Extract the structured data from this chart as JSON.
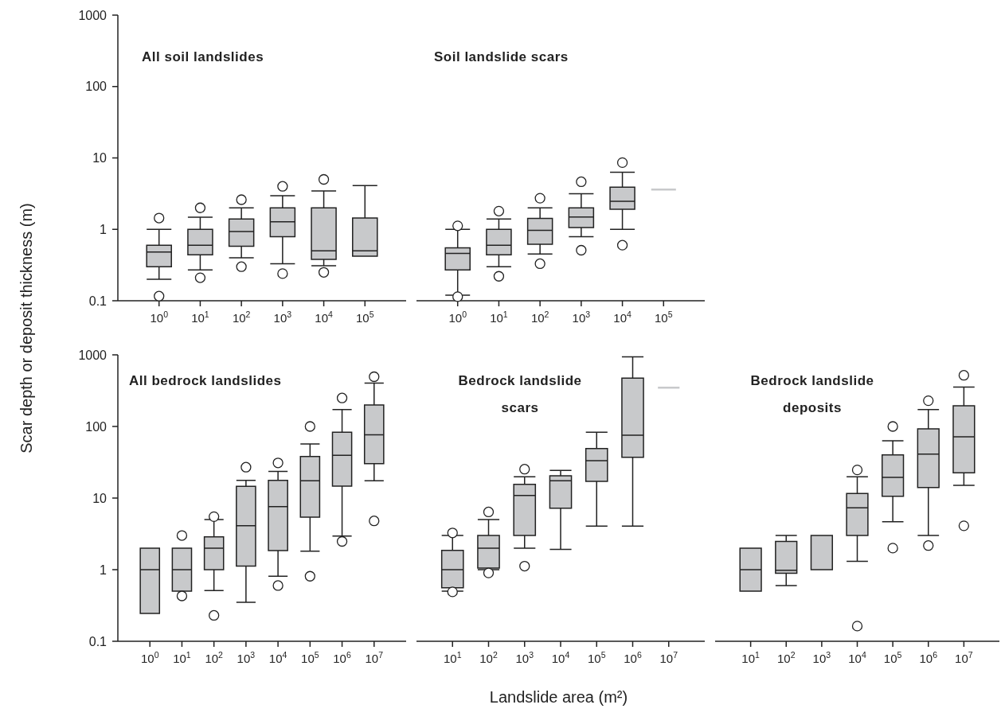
{
  "chart_data": [
    {
      "type": "box",
      "title": "All soil landslides",
      "ylabel": "Scar depth or deposit thickness (m)",
      "log": true,
      "ylim": [
        0.1,
        1000
      ],
      "yticks": [
        0.1,
        1,
        10,
        100,
        1000
      ],
      "color": "#c8c9cb",
      "categories": [
        "10$^{0}$",
        "10$^{1}$",
        "10$^{2}$",
        "10$^{3}$",
        "10$^{4}$",
        "10$^{5}$"
      ],
      "boxes": [
        {
          "low": 0.2,
          "q1": 0.3,
          "median": 0.48,
          "q3": 0.6,
          "high": 1.0,
          "outliers": [
            1.44,
            0.116
          ]
        },
        {
          "low": 0.27,
          "q1": 0.44,
          "median": 0.6,
          "q3": 1.0,
          "high": 1.48,
          "outliers": [
            2.0,
            0.21
          ]
        },
        {
          "low": 0.4,
          "q1": 0.58,
          "median": 0.93,
          "q3": 1.4,
          "high": 2.0,
          "outliers": [
            2.6,
            0.3
          ]
        },
        {
          "low": 0.33,
          "q1": 0.79,
          "median": 1.28,
          "q3": 2.0,
          "high": 2.95,
          "outliers": [
            4.0,
            0.24
          ]
        },
        {
          "low": 0.31,
          "q1": 0.38,
          "median": 0.5,
          "q3": 2.0,
          "high": 3.45,
          "outliers": [
            5.0,
            0.25
          ]
        },
        {
          "low": 0.42,
          "q1": 0.42,
          "median": 0.5,
          "q3": 1.44,
          "high": 4.1
        }
      ]
    },
    {
      "type": "box",
      "title": "Soil landslide scars",
      "log": true,
      "ylim": [
        0.1,
        1000
      ],
      "tick_labels": "x",
      "color": "#c8c9cb",
      "categories": [
        "10$^{0}$",
        "10$^{1}$",
        "10$^{2}$",
        "10$^{3}$",
        "10$^{4}$",
        "10$^{5}$"
      ],
      "boxes": [
        {
          "low": 0.12,
          "q1": 0.27,
          "median": 0.46,
          "q3": 0.55,
          "high": 1.0,
          "outliers": [
            1.12,
            0.114
          ]
        },
        {
          "low": 0.3,
          "q1": 0.44,
          "median": 0.6,
          "q3": 1.0,
          "high": 1.4,
          "outliers": [
            1.8,
            0.22
          ]
        },
        {
          "low": 0.45,
          "q1": 0.62,
          "median": 0.97,
          "q3": 1.42,
          "high": 2.0,
          "outliers": [
            2.73,
            0.33
          ]
        },
        {
          "low": 0.79,
          "q1": 1.06,
          "median": 1.49,
          "q3": 2.0,
          "high": 3.16,
          "outliers": [
            4.64,
            0.51
          ]
        },
        {
          "low": 1.0,
          "q1": 1.91,
          "median": 2.47,
          "q3": 3.9,
          "high": 6.3,
          "outliers": [
            8.6,
            0.6
          ]
        },
        {
          "low": 3.6,
          "q1": 3.6,
          "median": 3.6,
          "q3": 3.6,
          "high": 3.6
        }
      ]
    },
    {
      "type": "box",
      "title": "All bedrock landslides",
      "log": true,
      "ylim": [
        0.1,
        1000
      ],
      "yticks": [
        0.1,
        1,
        10,
        100,
        1000
      ],
      "color": "#c8c9cb",
      "categories": [
        "10$^{0}$",
        "10$^{1}$",
        "10$^{2}$",
        "10$^{3}$",
        "10$^{4}$",
        "10$^{5}$",
        "10$^{6}$",
        "10$^{7}$"
      ],
      "boxes": [
        {
          "low": 0.245,
          "q1": 0.245,
          "median": 1.0,
          "q3": 2.0,
          "high": 2.0
        },
        {
          "low": 0.5,
          "q1": 0.5,
          "median": 1.0,
          "q3": 2.0,
          "high": 2.0,
          "outliers": [
            3.0,
            0.43
          ]
        },
        {
          "low": 0.51,
          "q1": 1.0,
          "median": 2.0,
          "q3": 2.87,
          "high": 5.0,
          "outliers": [
            5.5,
            0.23
          ]
        },
        {
          "low": 0.35,
          "q1": 1.12,
          "median": 4.1,
          "q3": 14.6,
          "high": 17.7,
          "outliers": [
            27
          ]
        },
        {
          "low": 0.81,
          "q1": 1.85,
          "median": 7.6,
          "q3": 17.7,
          "high": 23.5,
          "outliers": [
            31,
            0.6
          ]
        },
        {
          "low": 1.81,
          "q1": 5.4,
          "median": 17.4,
          "q3": 38,
          "high": 57,
          "outliers": [
            100,
            0.81
          ]
        },
        {
          "low": 2.95,
          "q1": 14.7,
          "median": 39.5,
          "q3": 83,
          "high": 172,
          "outliers": [
            250,
            2.48
          ]
        },
        {
          "low": 17.4,
          "q1": 30.3,
          "median": 76.6,
          "q3": 199,
          "high": 403,
          "outliers": [
            495,
            4.8
          ]
        }
      ]
    },
    {
      "type": "box",
      "title": "Bedrock landslide scars",
      "xlabel": "Landslide area (m²)",
      "log": true,
      "ylim": [
        0.1,
        1000
      ],
      "tick_labels": "x",
      "color": "#c8c9cb",
      "categories": [
        "10$^{1}$",
        "10$^{2}$",
        "10$^{3}$",
        "10$^{4}$",
        "10$^{5}$",
        "10$^{6}$",
        "10$^{7}$"
      ],
      "boxes": [
        {
          "low": 0.5,
          "q1": 0.56,
          "median": 1.0,
          "q3": 1.86,
          "high": 3.0,
          "outliers": [
            3.26,
            0.49
          ]
        },
        {
          "low": 1.0,
          "q1": 1.05,
          "median": 2.0,
          "q3": 3.0,
          "high": 5.0,
          "outliers": [
            6.4,
            0.9
          ]
        },
        {
          "low": 2.0,
          "q1": 3.0,
          "median": 10.9,
          "q3": 15.5,
          "high": 19.8,
          "outliers": [
            25.3,
            1.12
          ]
        },
        {
          "low": 1.92,
          "q1": 7.2,
          "median": 17.4,
          "q3": 20.5,
          "high": 24.3
        },
        {
          "low": 4.07,
          "q1": 17.1,
          "median": 33.3,
          "q3": 49.2,
          "high": 83
        },
        {
          "low": 4.07,
          "q1": 37.2,
          "median": 75.6,
          "q3": 473,
          "high": 940
        },
        {
          "low": 347,
          "q1": 347,
          "median": 347,
          "q3": 347,
          "high": 347
        }
      ]
    },
    {
      "type": "box",
      "title": "Bedrock landslide deposits",
      "log": true,
      "ylim": [
        0.1,
        1000
      ],
      "tick_labels": "x",
      "color": "#c8c9cb",
      "categories": [
        "10$^{1}$",
        "10$^{2}$",
        "10$^{3}$",
        "10$^{4}$",
        "10$^{5}$",
        "10$^{6}$",
        "10$^{7}$"
      ],
      "boxes": [
        {
          "low": 0.5,
          "q1": 0.5,
          "median": 1.0,
          "q3": 2.0,
          "high": 2.0
        },
        {
          "low": 0.6,
          "q1": 0.89,
          "median": 0.98,
          "q3": 2.48,
          "high": 3.0
        },
        {
          "low": 1.0,
          "q1": 1.0,
          "median": 3.0,
          "q3": 3.0,
          "high": 3.0
        },
        {
          "low": 1.31,
          "q1": 3.0,
          "median": 7.3,
          "q3": 11.6,
          "high": 19.8,
          "outliers": [
            24.7,
            0.163
          ]
        },
        {
          "low": 4.66,
          "q1": 10.6,
          "median": 19.5,
          "q3": 40.1,
          "high": 63,
          "outliers": [
            100,
            2.0
          ]
        },
        {
          "low": 3.0,
          "q1": 14.0,
          "median": 41,
          "q3": 92.4,
          "high": 172,
          "outliers": [
            229,
            2.17
          ]
        },
        {
          "low": 15.1,
          "q1": 22.5,
          "median": 71.5,
          "q3": 194,
          "high": 354,
          "outliers": [
            518,
            4.1
          ]
        }
      ]
    }
  ]
}
